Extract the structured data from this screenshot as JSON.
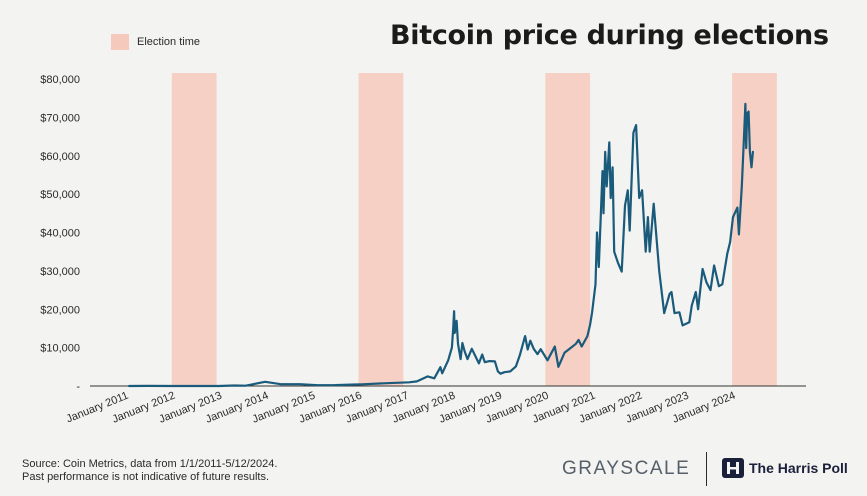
{
  "chart_data": {
    "type": "line",
    "title": "Bitcoin price during elections",
    "legend": {
      "label": "Election time",
      "color": "#f6c9bd",
      "placement": "top-left"
    },
    "series_color": "#1a5a7a",
    "ylim": [
      0,
      80000
    ],
    "ytick_values": [
      0,
      10000,
      20000,
      30000,
      40000,
      50000,
      60000,
      70000,
      80000
    ],
    "ytick_labels": [
      "-",
      "$10,000",
      "$20,000",
      "$30,000",
      "$40,000",
      "$50,000",
      "$60,000",
      "$70,000",
      "$80,000"
    ],
    "xlim": [
      "2010-03-01",
      "2025-07-01"
    ],
    "xtick_dates": [
      "2011-01-01",
      "2012-01-01",
      "2013-01-01",
      "2014-01-01",
      "2015-01-01",
      "2016-01-01",
      "2017-01-01",
      "2018-01-01",
      "2019-01-01",
      "2020-01-01",
      "2021-01-01",
      "2022-01-01",
      "2023-01-01",
      "2024-01-01"
    ],
    "xtick_labels": [
      "January 2011",
      "January 2012",
      "January 2013",
      "January 2014",
      "January 2015",
      "January 2016",
      "January 2017",
      "January 2018",
      "January 2019",
      "January 2020",
      "January 2021",
      "January 2022",
      "January 2023",
      "January 2024"
    ],
    "election_periods": [
      [
        "2011-12-01",
        "2012-11-15"
      ],
      [
        "2015-12-01",
        "2016-11-15"
      ],
      [
        "2019-12-01",
        "2020-11-15"
      ],
      [
        "2023-12-01",
        "2024-11-15"
      ]
    ],
    "series": [
      {
        "name": "Bitcoin price",
        "points": [
          [
            "2011-01-01",
            0.3
          ],
          [
            "2011-06-01",
            18
          ],
          [
            "2011-12-01",
            3
          ],
          [
            "2012-06-01",
            6
          ],
          [
            "2012-12-01",
            13
          ],
          [
            "2013-04-01",
            130
          ],
          [
            "2013-07-01",
            90
          ],
          [
            "2013-11-30",
            1100
          ],
          [
            "2014-01-15",
            850
          ],
          [
            "2014-04-01",
            480
          ],
          [
            "2014-09-01",
            480
          ],
          [
            "2015-01-15",
            200
          ],
          [
            "2015-06-01",
            230
          ],
          [
            "2015-11-05",
            400
          ],
          [
            "2016-01-01",
            430
          ],
          [
            "2016-06-15",
            700
          ],
          [
            "2016-12-31",
            960
          ],
          [
            "2017-03-01",
            1200
          ],
          [
            "2017-05-25",
            2500
          ],
          [
            "2017-07-15",
            2000
          ],
          [
            "2017-09-01",
            4900
          ],
          [
            "2017-09-15",
            3300
          ],
          [
            "2017-11-01",
            6700
          ],
          [
            "2017-11-30",
            10000
          ],
          [
            "2017-12-10",
            15000
          ],
          [
            "2017-12-17",
            19500
          ],
          [
            "2017-12-22",
            13800
          ],
          [
            "2018-01-06",
            17000
          ],
          [
            "2018-01-17",
            11000
          ],
          [
            "2018-02-06",
            7000
          ],
          [
            "2018-02-20",
            11200
          ],
          [
            "2018-03-10",
            9000
          ],
          [
            "2018-04-01",
            7000
          ],
          [
            "2018-05-05",
            9700
          ],
          [
            "2018-06-29",
            5900
          ],
          [
            "2018-07-25",
            8200
          ],
          [
            "2018-08-14",
            6200
          ],
          [
            "2018-09-20",
            6500
          ],
          [
            "2018-11-01",
            6400
          ],
          [
            "2018-11-25",
            3800
          ],
          [
            "2018-12-15",
            3200
          ],
          [
            "2019-01-15",
            3600
          ],
          [
            "2019-03-01",
            3800
          ],
          [
            "2019-04-15",
            5100
          ],
          [
            "2019-05-15",
            8000
          ],
          [
            "2019-06-26",
            13000
          ],
          [
            "2019-07-16",
            9500
          ],
          [
            "2019-08-05",
            11800
          ],
          [
            "2019-09-01",
            9700
          ],
          [
            "2019-10-01",
            8300
          ],
          [
            "2019-10-26",
            9600
          ],
          [
            "2019-12-18",
            6700
          ],
          [
            "2020-02-13",
            10300
          ],
          [
            "2020-03-12",
            5000
          ],
          [
            "2020-04-30",
            8700
          ],
          [
            "2020-06-01",
            9500
          ],
          [
            "2020-07-27",
            11000
          ],
          [
            "2020-08-17",
            12000
          ],
          [
            "2020-09-10",
            10300
          ],
          [
            "2020-10-25",
            13000
          ],
          [
            "2020-11-15",
            16000
          ],
          [
            "2020-12-01",
            19200
          ],
          [
            "2020-12-27",
            26500
          ],
          [
            "2021-01-08",
            40000
          ],
          [
            "2021-01-22",
            31000
          ],
          [
            "2021-02-20",
            56000
          ],
          [
            "2021-02-28",
            45000
          ],
          [
            "2021-03-13",
            61000
          ],
          [
            "2021-03-25",
            52000
          ],
          [
            "2021-04-14",
            63500
          ],
          [
            "2021-04-25",
            49000
          ],
          [
            "2021-05-10",
            57000
          ],
          [
            "2021-05-23",
            35000
          ],
          [
            "2021-06-22",
            32000
          ],
          [
            "2021-07-20",
            29800
          ],
          [
            "2021-08-15",
            47000
          ],
          [
            "2021-09-06",
            51000
          ],
          [
            "2021-09-21",
            40500
          ],
          [
            "2021-10-20",
            66000
          ],
          [
            "2021-11-10",
            68000
          ],
          [
            "2021-12-04",
            49000
          ],
          [
            "2021-12-27",
            51000
          ],
          [
            "2022-01-24",
            35000
          ],
          [
            "2022-02-10",
            44000
          ],
          [
            "2022-02-24",
            35000
          ],
          [
            "2022-03-28",
            47500
          ],
          [
            "2022-05-10",
            30000
          ],
          [
            "2022-06-18",
            19000
          ],
          [
            "2022-07-30",
            24000
          ],
          [
            "2022-08-14",
            24500
          ],
          [
            "2022-09-06",
            19000
          ],
          [
            "2022-10-15",
            19200
          ],
          [
            "2022-11-09",
            15800
          ],
          [
            "2022-12-31",
            16600
          ],
          [
            "2023-01-20",
            21000
          ],
          [
            "2023-02-20",
            24500
          ],
          [
            "2023-03-10",
            20000
          ],
          [
            "2023-04-14",
            30500
          ],
          [
            "2023-05-15",
            27000
          ],
          [
            "2023-06-15",
            25000
          ],
          [
            "2023-07-13",
            31400
          ],
          [
            "2023-08-20",
            26000
          ],
          [
            "2023-09-15",
            26500
          ],
          [
            "2023-10-24",
            34500
          ],
          [
            "2023-11-15",
            37500
          ],
          [
            "2023-12-08",
            44000
          ],
          [
            "2024-01-11",
            46500
          ],
          [
            "2024-01-23",
            39500
          ],
          [
            "2024-02-15",
            52000
          ],
          [
            "2024-02-28",
            62000
          ],
          [
            "2024-03-14",
            73500
          ],
          [
            "2024-03-20",
            62000
          ],
          [
            "2024-03-27",
            71000
          ],
          [
            "2024-04-08",
            71500
          ],
          [
            "2024-04-18",
            61000
          ],
          [
            "2024-05-01",
            57000
          ],
          [
            "2024-05-12",
            61000
          ]
        ]
      }
    ]
  },
  "source": {
    "line1": "Source: Coin Metrics, data from 1/1/2011-5/12/2024.",
    "line2": "Past performance is not indicative of future results."
  },
  "logos": {
    "grayscale": "GRAYSCALE",
    "harris_poll": "The Harris Poll"
  }
}
